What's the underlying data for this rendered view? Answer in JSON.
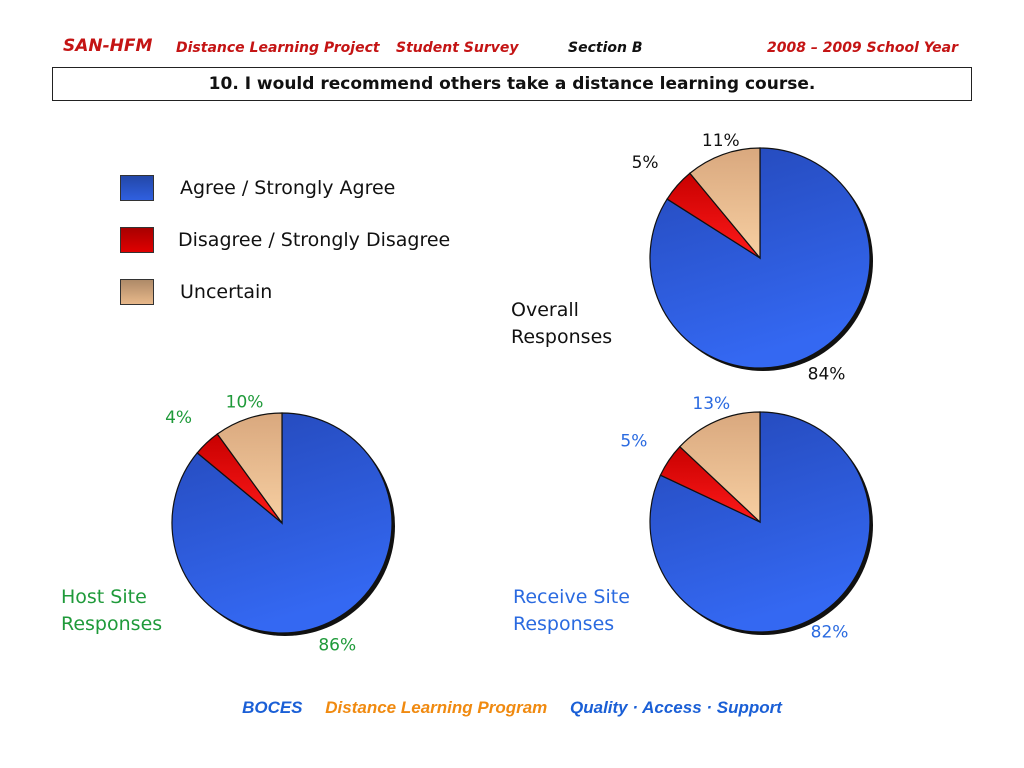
{
  "header": {
    "brand": "SAN-HFM",
    "project": "Distance Learning Project",
    "survey": "Student Survey",
    "section": "Section B",
    "year": "2008 – 2009 School Year"
  },
  "question": "10. I would recommend others take a distance learning course.",
  "legend": [
    {
      "label": "Agree / Strongly Agree",
      "color": "#2f5fe0"
    },
    {
      "label": "Disagree / Strongly Disagree",
      "color": "#e00000"
    },
    {
      "label": "Uncertain",
      "color": "#e8b88a"
    }
  ],
  "footer": {
    "org": "BOCES",
    "program": "Distance Learning Program",
    "tagline": "Quality · Access · Support"
  },
  "colors": {
    "header_red": "#c41414",
    "footer_blue": "#1a5fd6",
    "footer_orange": "#f08a10",
    "host_green": "#1f9a3a",
    "receive_blue": "#2a6ae0"
  },
  "chart_data": [
    {
      "type": "pie",
      "title": "Overall Responses",
      "categories": [
        "Agree / Strongly Agree",
        "Disagree / Strongly Disagree",
        "Uncertain"
      ],
      "values": [
        84,
        5,
        11
      ],
      "labels": [
        "84%",
        "5%",
        "11%"
      ],
      "label_color": "#111111"
    },
    {
      "type": "pie",
      "title": "Host Site Responses",
      "categories": [
        "Agree / Strongly Agree",
        "Disagree / Strongly Disagree",
        "Uncertain"
      ],
      "values": [
        86,
        4,
        10
      ],
      "labels": [
        "86%",
        "4%",
        "10%"
      ],
      "label_color": "#1f9a3a"
    },
    {
      "type": "pie",
      "title": "Receive Site Responses",
      "categories": [
        "Agree / Strongly Agree",
        "Disagree / Strongly Disagree",
        "Uncertain"
      ],
      "values": [
        82,
        5,
        13
      ],
      "labels": [
        "82%",
        "5%",
        "13%"
      ],
      "label_color": "#2a6ae0"
    }
  ]
}
